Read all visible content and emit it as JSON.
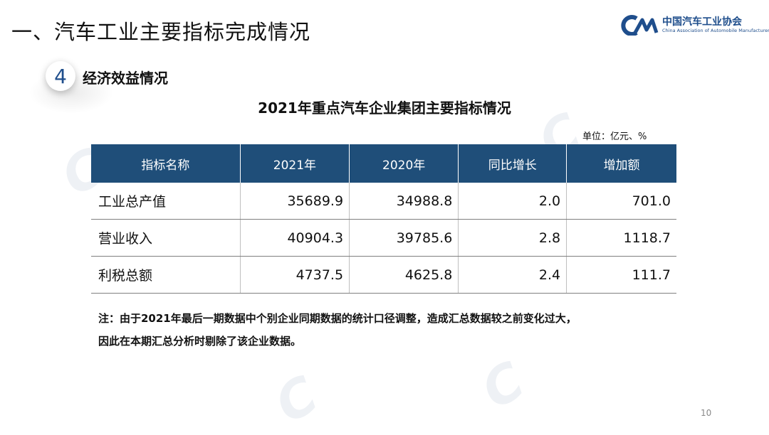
{
  "header": {
    "title": "一、汽车工业主要指标完成情况",
    "logo_cn": "中国汽车工业协会",
    "logo_en": "China Association of Automobile Manufacturers"
  },
  "section": {
    "number": "4",
    "title": "经济效益情况"
  },
  "table": {
    "title": "2021年重点汽车企业集团主要指标情况",
    "unit": "单位：亿元、%",
    "headers": [
      "指标名称",
      "2021年",
      "2020年",
      "同比增长",
      "增加额"
    ],
    "rows": [
      [
        "工业总产值",
        "35689.9",
        "34988.8",
        "2.0",
        "701.0"
      ],
      [
        "营业收入",
        "40904.3",
        "39785.6",
        "2.8",
        "1118.7"
      ],
      [
        "利税总额",
        "4737.5",
        "4625.8",
        "2.4",
        "111.7"
      ]
    ]
  },
  "note": {
    "line1": "注：由于2021年最后一期数据中个别企业同期数据的统计口径调整，造成汇总数据较之前变化过大，",
    "line2": "因此在本期汇总分析时剔除了该企业数据。"
  },
  "footer": {
    "page": "10"
  },
  "colors": {
    "header_fill": "#1f4e79",
    "brand_blue": "#1f4e8c"
  }
}
